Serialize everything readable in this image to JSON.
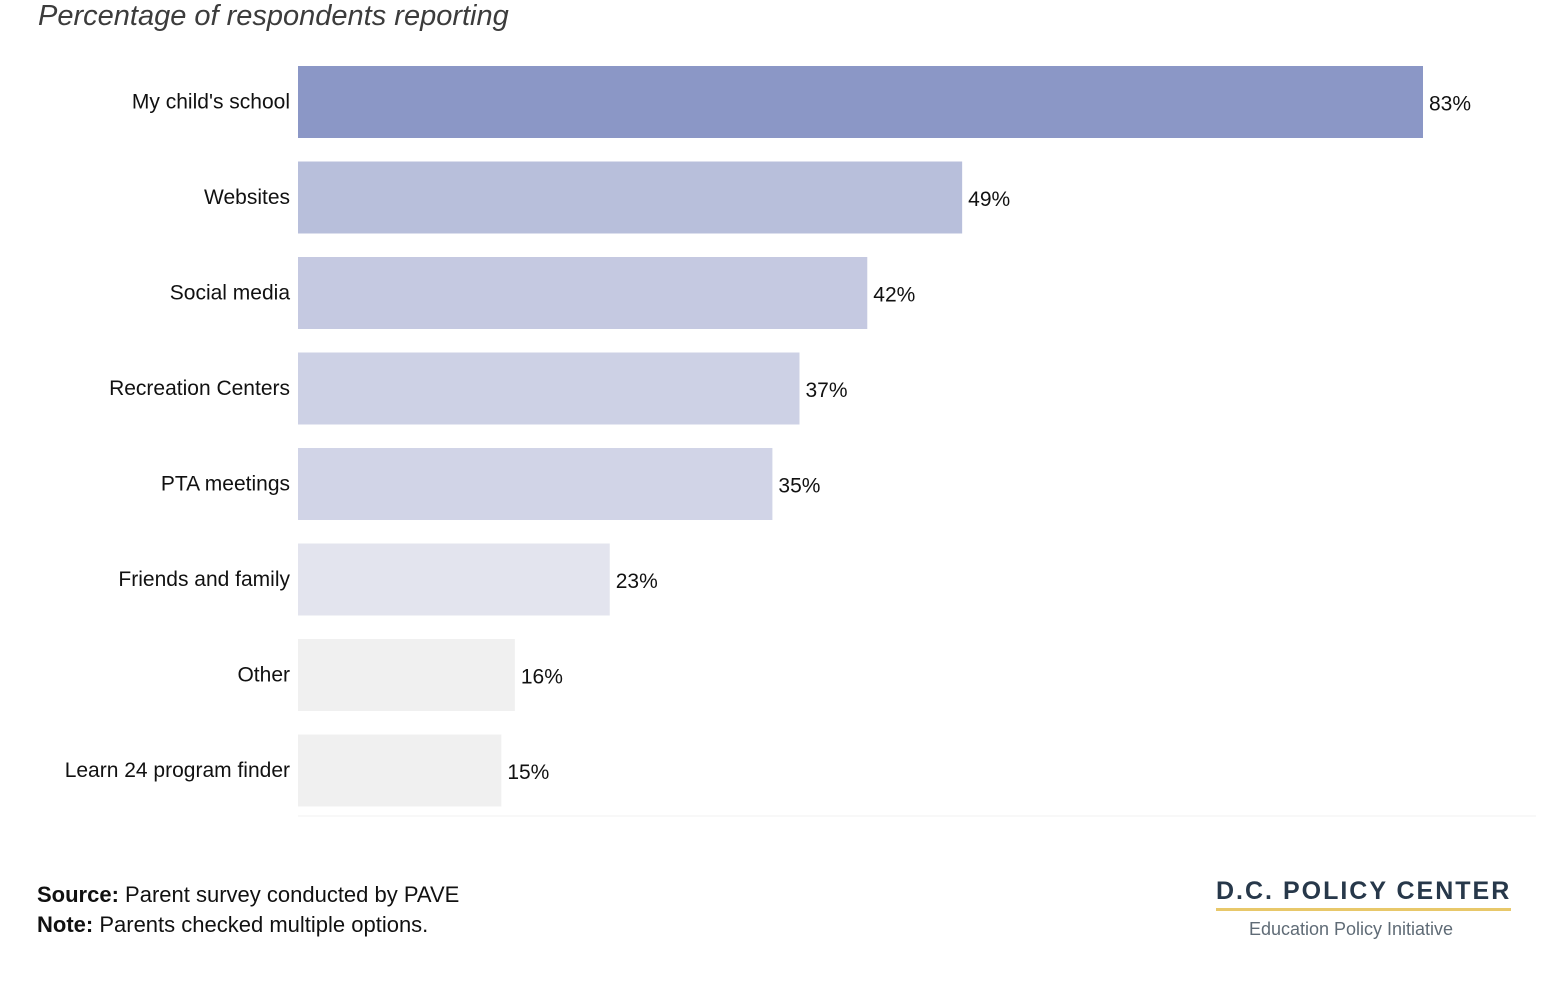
{
  "chart_data": {
    "type": "bar",
    "orientation": "horizontal",
    "subtitle": "Percentage of respondents reporting",
    "categories": [
      "My child's school",
      "Websites",
      "Social media",
      "Recreation Centers",
      "PTA meetings",
      "Friends and family",
      "Other",
      "Learn 24 program finder"
    ],
    "values": [
      83,
      49,
      42,
      37,
      35,
      23,
      16,
      15
    ],
    "value_labels": [
      "83%",
      "49%",
      "42%",
      "37%",
      "35%",
      "23%",
      "16%",
      "15%"
    ],
    "bar_colors": [
      "#8b97c6",
      "#b8bfdb",
      "#c5c9e1",
      "#cdd1e5",
      "#d1d4e7",
      "#e3e4ee",
      "#f0f0f0",
      "#f0f0f0"
    ],
    "xlim": [
      0,
      83
    ],
    "grid": false,
    "legend": "none"
  },
  "footer": {
    "source_label": "Source:",
    "source_text": " Parent survey conducted by PAVE",
    "note_label": "Note:",
    "note_text": " Parents checked multiple options."
  },
  "brand": {
    "name": "D.C. POLICY CENTER",
    "subtitle": "Education Policy Initiative",
    "accent_color": "#e8c86a"
  }
}
